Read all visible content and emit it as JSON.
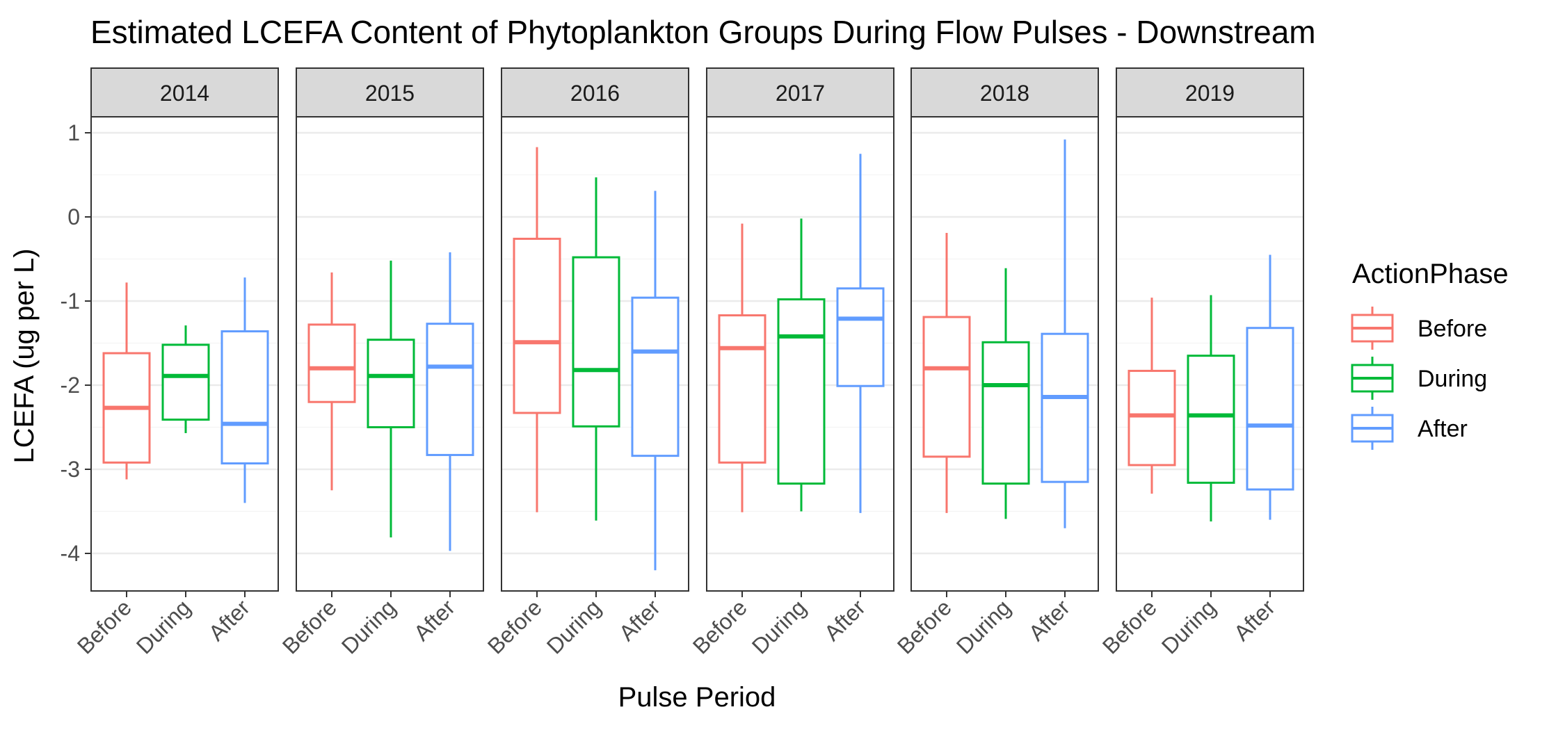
{
  "chart_data": {
    "type": "boxplot",
    "title": "Estimated LCEFA Content of Phytoplankton Groups During Flow Pulses - Downstream",
    "xlabel": "Pulse Period",
    "ylabel": "LCEFA (ug per L)",
    "ylim": [
      -4.45,
      1.2
    ],
    "yticks": [
      1,
      0,
      -1,
      -2,
      -3,
      -4
    ],
    "ytick_labels": [
      "1",
      "0",
      "-1",
      "-2",
      "-3",
      "-4"
    ],
    "categories": [
      "Before",
      "During",
      "After"
    ],
    "legend": {
      "title": "ActionPhase",
      "placement": "right",
      "items": [
        {
          "label": "Before",
          "color": "#F8766D"
        },
        {
          "label": "During",
          "color": "#00BA38"
        },
        {
          "label": "After",
          "color": "#619CFF"
        }
      ]
    },
    "grid": true,
    "panels": [
      {
        "year": "2014",
        "boxes": [
          {
            "phase": "Before",
            "min": -3.12,
            "q1": -2.92,
            "median": -2.27,
            "q3": -1.62,
            "max": -0.78
          },
          {
            "phase": "During",
            "min": -2.57,
            "q1": -2.41,
            "median": -1.89,
            "q3": -1.52,
            "max": -1.29
          },
          {
            "phase": "After",
            "min": -3.4,
            "q1": -2.93,
            "median": -2.46,
            "q3": -1.36,
            "max": -0.72
          }
        ]
      },
      {
        "year": "2015",
        "boxes": [
          {
            "phase": "Before",
            "min": -3.25,
            "q1": -2.2,
            "median": -1.8,
            "q3": -1.28,
            "max": -0.66
          },
          {
            "phase": "During",
            "min": -3.81,
            "q1": -2.5,
            "median": -1.89,
            "q3": -1.46,
            "max": -0.52
          },
          {
            "phase": "After",
            "min": -3.97,
            "q1": -2.83,
            "median": -1.78,
            "q3": -1.27,
            "max": -0.42
          }
        ]
      },
      {
        "year": "2016",
        "boxes": [
          {
            "phase": "Before",
            "min": -3.51,
            "q1": -2.33,
            "median": -1.49,
            "q3": -0.26,
            "max": 0.83
          },
          {
            "phase": "During",
            "min": -3.61,
            "q1": -2.49,
            "median": -1.82,
            "q3": -0.48,
            "max": 0.47
          },
          {
            "phase": "After",
            "min": -4.2,
            "q1": -2.84,
            "median": -1.6,
            "q3": -0.96,
            "max": 0.31
          }
        ]
      },
      {
        "year": "2017",
        "boxes": [
          {
            "phase": "Before",
            "min": -3.51,
            "q1": -2.92,
            "median": -1.56,
            "q3": -1.17,
            "max": -0.08
          },
          {
            "phase": "During",
            "min": -3.5,
            "q1": -3.17,
            "median": -1.42,
            "q3": -0.98,
            "max": -0.02
          },
          {
            "phase": "After",
            "min": -3.52,
            "q1": -2.01,
            "median": -1.21,
            "q3": -0.85,
            "max": 0.75
          }
        ]
      },
      {
        "year": "2018",
        "boxes": [
          {
            "phase": "Before",
            "min": -3.52,
            "q1": -2.85,
            "median": -1.8,
            "q3": -1.19,
            "max": -0.19
          },
          {
            "phase": "During",
            "min": -3.59,
            "q1": -3.17,
            "median": -2.0,
            "q3": -1.49,
            "max": -0.61
          },
          {
            "phase": "After",
            "min": -3.7,
            "q1": -3.15,
            "median": -2.14,
            "q3": -1.39,
            "max": 0.92
          }
        ]
      },
      {
        "year": "2019",
        "boxes": [
          {
            "phase": "Before",
            "min": -3.29,
            "q1": -2.95,
            "median": -2.36,
            "q3": -1.83,
            "max": -0.96
          },
          {
            "phase": "During",
            "min": -3.62,
            "q1": -3.16,
            "median": -2.36,
            "q3": -1.65,
            "max": -0.93
          },
          {
            "phase": "After",
            "min": -3.6,
            "q1": -3.24,
            "median": -2.48,
            "q3": -1.32,
            "max": -0.45
          }
        ]
      }
    ]
  }
}
